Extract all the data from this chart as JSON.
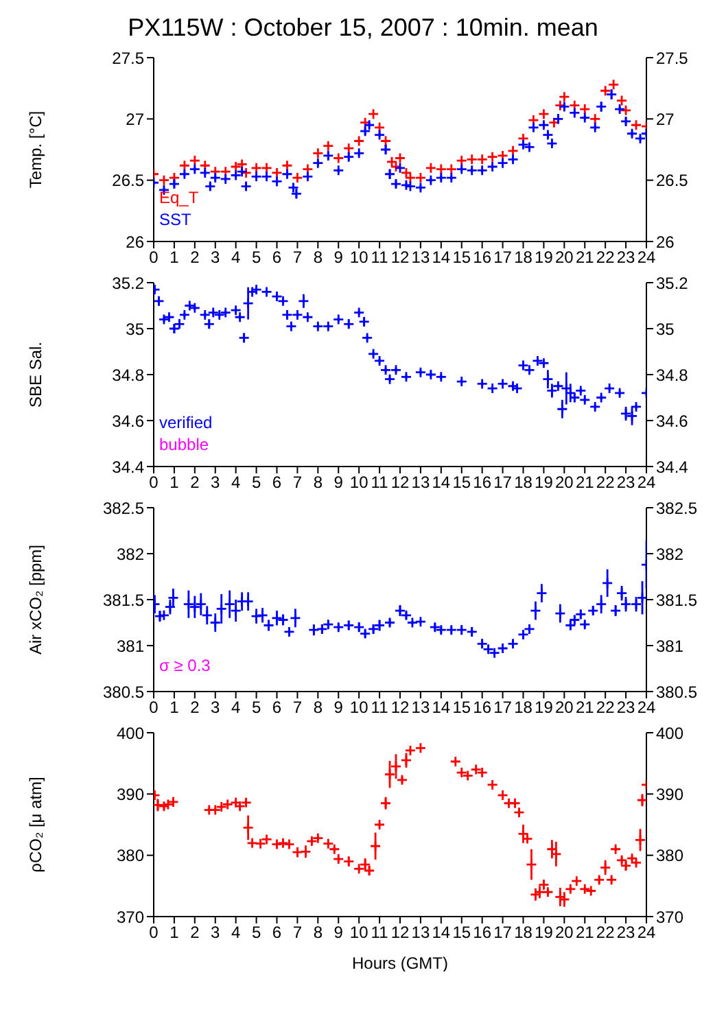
{
  "chart_data": [
    {
      "type": "scatter",
      "title": "PX115W : October 15, 2007 : 10min. mean",
      "ylabel": "Temp. [°C]",
      "marker": "cross",
      "legend": "bottom left",
      "xlim": [
        0,
        24
      ],
      "xticks": [
        0,
        1,
        2,
        3,
        4,
        5,
        6,
        7,
        8,
        9,
        10,
        11,
        12,
        13,
        14,
        15,
        16,
        17,
        18,
        19,
        20,
        21,
        22,
        23,
        24
      ],
      "ylim": [
        26,
        27.5
      ],
      "yticks": [
        26,
        26.5,
        27,
        27.5
      ],
      "y2lim": [
        26,
        27.5
      ],
      "y2ticks": [
        26,
        26.5,
        27,
        27.5
      ],
      "series": [
        {
          "name": "Eq_T",
          "color": "#ff0000",
          "x": [
            0,
            0.5,
            1,
            1.5,
            2,
            2.5,
            3,
            3.5,
            4,
            4.3,
            4.5,
            5,
            5.5,
            6,
            6.5,
            7,
            7.5,
            8,
            8.5,
            9,
            9.5,
            10,
            10.3,
            10.7,
            11,
            11.3,
            11.6,
            11.8,
            12,
            12.3,
            12.5,
            13,
            13.5,
            14,
            14.5,
            15,
            15.5,
            16,
            16.5,
            17,
            17.5,
            18,
            18.5,
            19,
            19.5,
            19.8,
            20,
            20.5,
            21,
            21.5,
            22,
            22.4,
            22.8,
            23,
            23.5,
            24
          ],
          "values": [
            26.55,
            26.5,
            26.52,
            26.62,
            26.66,
            26.62,
            26.57,
            26.57,
            26.61,
            26.63,
            26.56,
            26.6,
            26.6,
            26.56,
            26.62,
            26.52,
            26.59,
            26.72,
            26.78,
            26.68,
            26.76,
            26.82,
            26.97,
            27.04,
            26.93,
            26.82,
            26.65,
            26.61,
            26.68,
            26.56,
            26.52,
            26.52,
            26.6,
            26.59,
            26.59,
            26.66,
            26.67,
            26.67,
            26.69,
            26.7,
            26.74,
            26.84,
            26.99,
            27.04,
            26.97,
            27.11,
            27.18,
            27.11,
            27.08,
            27.0,
            27.23,
            27.28,
            27.15,
            27.07,
            26.95,
            26.94
          ]
        },
        {
          "name": "SST",
          "color": "#0000ff",
          "x": [
            0,
            0.5,
            1,
            1.5,
            2,
            2.5,
            2.75,
            3,
            3.5,
            4,
            4.3,
            4.5,
            5,
            5.5,
            6,
            6.5,
            6.8,
            6.95,
            7.5,
            8,
            8.5,
            9,
            9.5,
            10,
            10.3,
            10.5,
            11,
            11.3,
            11.5,
            11.8,
            12,
            12.3,
            12.5,
            13,
            13.5,
            14,
            14.5,
            15,
            15.5,
            16,
            16.5,
            17,
            17.5,
            18,
            18.3,
            18.5,
            19,
            19.2,
            19.4,
            19.7,
            20,
            20.5,
            21,
            21.5,
            21.8,
            22.3,
            22.7,
            23,
            23.3,
            23.7,
            24
          ],
          "values": [
            26.48,
            26.42,
            26.47,
            26.55,
            26.59,
            26.56,
            26.45,
            26.52,
            26.51,
            26.54,
            26.57,
            26.45,
            26.53,
            26.53,
            26.49,
            26.55,
            26.44,
            26.39,
            26.53,
            26.64,
            26.7,
            26.58,
            26.69,
            26.72,
            26.9,
            26.95,
            26.87,
            26.75,
            26.55,
            26.47,
            26.6,
            26.46,
            26.45,
            26.44,
            26.5,
            26.52,
            26.52,
            26.59,
            26.58,
            26.58,
            26.61,
            26.64,
            26.67,
            26.79,
            26.77,
            26.93,
            26.95,
            26.87,
            26.8,
            27.0,
            27.1,
            27.05,
            27.01,
            26.93,
            27.1,
            27.2,
            27.08,
            26.98,
            26.88,
            26.84,
            26.88
          ],
          "errors": [
            0.02,
            0.02,
            0.03,
            0.02,
            0.02,
            0.02,
            0.03,
            0.02,
            0.02,
            0.02,
            0.02,
            0.03,
            0.02,
            0.02,
            0.02,
            0.02,
            0.03,
            0.04,
            0.03,
            0.02,
            0.03,
            0.02,
            0.03,
            0.02,
            0.03,
            0.02,
            0.02,
            0.04,
            0.04,
            0.03,
            null,
            0.02,
            null,
            0.02,
            0.02,
            0.02,
            0.02,
            0.02,
            0.02,
            0.02,
            0.02,
            0.02,
            0.02,
            0.02,
            0.02,
            0.03,
            0.02,
            0.03,
            0.02,
            0.04,
            0.03,
            0.02,
            0.02,
            0.02,
            0.04,
            0.04,
            0.02,
            0.03,
            0.02,
            0.02,
            0.02
          ]
        }
      ]
    },
    {
      "type": "scatter",
      "ylabel": "SBE Sal.",
      "marker": "cross",
      "legend": "bottom left",
      "xlim": [
        0,
        24
      ],
      "xticks": [
        0,
        1,
        2,
        3,
        4,
        5,
        6,
        7,
        8,
        9,
        10,
        11,
        12,
        13,
        14,
        15,
        16,
        17,
        18,
        19,
        20,
        21,
        22,
        23,
        24
      ],
      "ylim": [
        34.4,
        35.2
      ],
      "yticks": [
        34.4,
        34.6,
        34.8,
        35,
        35.2
      ],
      "y2lim": [
        34.4,
        35.2
      ],
      "y2ticks": [
        34.4,
        34.6,
        34.8,
        35,
        35.2
      ],
      "series": [
        {
          "name": "verified",
          "color": "#0000ff",
          "x": [
            0.05,
            0.25,
            0.5,
            0.75,
            1,
            1.25,
            1.5,
            1.75,
            2,
            2.5,
            2.7,
            2.9,
            3.2,
            3.5,
            4,
            4.2,
            4.4,
            4.6,
            4.8,
            5,
            5.5,
            6,
            6.3,
            6.5,
            6.7,
            7,
            7.3,
            7.5,
            8,
            8.5,
            9,
            9.5,
            10,
            10.25,
            10.4,
            10.7,
            11,
            11.3,
            11.5,
            11.8,
            12.3,
            13,
            13.5,
            14,
            15,
            16,
            16.5,
            17,
            17.5,
            17.7,
            18,
            18.3,
            18.7,
            19,
            19.2,
            19.4,
            19.7,
            19.9,
            20.1,
            20.3,
            20.5,
            20.8,
            21,
            21.5,
            21.8,
            22.2,
            22.7,
            23,
            23.3,
            23.5,
            24
          ],
          "values": [
            35.17,
            35.12,
            35.04,
            35.05,
            35.0,
            35.02,
            35.06,
            35.1,
            35.09,
            35.06,
            35.02,
            35.07,
            35.06,
            35.07,
            35.08,
            35.05,
            34.96,
            35.11,
            35.16,
            35.17,
            35.16,
            35.14,
            35.12,
            35.06,
            35.01,
            35.06,
            35.12,
            35.05,
            35.01,
            35.01,
            35.04,
            35.02,
            35.07,
            35.03,
            34.96,
            34.89,
            34.86,
            34.82,
            34.78,
            34.82,
            34.79,
            34.81,
            34.8,
            34.79,
            34.77,
            34.76,
            34.74,
            34.76,
            34.75,
            34.74,
            34.84,
            34.82,
            34.86,
            34.85,
            34.78,
            34.73,
            34.75,
            34.65,
            34.74,
            34.72,
            34.7,
            34.73,
            34.69,
            34.66,
            34.7,
            34.74,
            34.72,
            34.63,
            34.62,
            34.66,
            34.72
          ],
          "errors": [
            0.01,
            0.02,
            0.01,
            0.01,
            0.02,
            0.02,
            0.01,
            0.01,
            0.01,
            0.01,
            0.02,
            0.01,
            0.01,
            0.01,
            0.01,
            0.01,
            0.02,
            0.07,
            0.01,
            0.01,
            0.01,
            0.01,
            0.01,
            0.02,
            0.01,
            0.01,
            0.03,
            0.01,
            0.01,
            0.01,
            0.01,
            0.02,
            0.01,
            0.02,
            0.01,
            0.01,
            0.01,
            0.01,
            0.01,
            0.01,
            0.01,
            0.01,
            0.01,
            0.01,
            0.01,
            0.01,
            0.01,
            0.01,
            0.01,
            0.01,
            0.02,
            0.01,
            0.01,
            0.01,
            0.04,
            0.03,
            0.01,
            0.04,
            0.07,
            0.04,
            0.02,
            0.01,
            0.01,
            0.01,
            0.01,
            0.01,
            0.01,
            0.03,
            0.04,
            0.01,
            0.01
          ]
        },
        {
          "name": "bubble",
          "color": "#ff00ff"
        }
      ]
    },
    {
      "type": "scatter",
      "ylabel": "Air xCO₂ [ppm]",
      "marker": "cross",
      "annotations": [
        "σ ≥ 0.3"
      ],
      "xlim": [
        0,
        24
      ],
      "xticks": [
        0,
        1,
        2,
        3,
        4,
        5,
        6,
        7,
        8,
        9,
        10,
        11,
        12,
        13,
        14,
        15,
        16,
        17,
        18,
        19,
        20,
        21,
        22,
        23,
        24
      ],
      "ylim": [
        380.5,
        382.5
      ],
      "yticks": [
        380.5,
        381,
        381.5,
        382,
        382.5
      ],
      "y2lim": [
        380.5,
        382.5
      ],
      "y2ticks": [
        380.5,
        381,
        381.5,
        382,
        382.5
      ],
      "series": [
        {
          "color": "#0000ff",
          "x": [
            0.05,
            0.3,
            0.5,
            0.8,
            0.95,
            1.7,
            2,
            2.3,
            2.6,
            3,
            3.3,
            3.7,
            4,
            4.3,
            4.6,
            5,
            5.3,
            5.6,
            6,
            6.3,
            6.6,
            6.9,
            7.8,
            8.2,
            8.5,
            9,
            9.5,
            10,
            10.3,
            10.7,
            11,
            11.5,
            12,
            12.3,
            12.6,
            13,
            13.7,
            14,
            14.5,
            15,
            15.5,
            16,
            16.3,
            16.6,
            17,
            17.5,
            18,
            18.3,
            18.6,
            18.9,
            19.8,
            20.3,
            20.5,
            20.8,
            21,
            21.4,
            21.8,
            22.1,
            22.5,
            22.8,
            23,
            23.5,
            23.8,
            24
          ],
          "values": [
            381.45,
            381.32,
            381.33,
            381.42,
            381.52,
            381.45,
            381.42,
            381.45,
            381.33,
            381.25,
            381.4,
            381.45,
            381.38,
            381.48,
            381.48,
            381.32,
            381.33,
            381.22,
            381.3,
            381.28,
            381.15,
            381.3,
            381.17,
            381.18,
            381.23,
            381.2,
            381.22,
            381.2,
            381.13,
            381.18,
            381.22,
            381.25,
            381.38,
            381.33,
            381.25,
            381.26,
            381.2,
            381.17,
            381.17,
            381.17,
            381.15,
            381.02,
            380.96,
            380.92,
            380.97,
            381.02,
            381.12,
            381.18,
            381.38,
            381.57,
            381.35,
            381.22,
            381.28,
            381.34,
            381.23,
            381.38,
            381.45,
            381.68,
            381.38,
            381.57,
            381.45,
            381.45,
            381.52,
            381.88
          ],
          "errors": [
            0.1,
            0.06,
            null,
            0.08,
            0.1,
            0.15,
            0.12,
            0.12,
            0.1,
            0.1,
            0.16,
            0.15,
            0.12,
            0.1,
            0.1,
            0.08,
            0.08,
            0.06,
            0.08,
            0.06,
            0.05,
            0.1,
            0.06,
            0.05,
            0.04,
            0.04,
            0.05,
            0.05,
            0.04,
            0.05,
            0.06,
            0.04,
            0.06,
            0.04,
            0.02,
            0.02,
            0.04,
            0.04,
            0.04,
            0.05,
            0.05,
            0.05,
            0.04,
            0.03,
            0.04,
            0.04,
            0.05,
            0.05,
            0.1,
            0.1,
            0.1,
            0.05,
            0.05,
            0.05,
            0.03,
            0.05,
            0.1,
            0.15,
            0.06,
            0.08,
            0.08,
            0.08,
            0.18,
            0.26
          ]
        }
      ]
    },
    {
      "type": "scatter",
      "ylabel": "ρCO₂ [μ atm]",
      "xlabel": "Hours (GMT)",
      "marker": "cross",
      "xlim": [
        0,
        24
      ],
      "xticks": [
        0,
        1,
        2,
        3,
        4,
        5,
        6,
        7,
        8,
        9,
        10,
        11,
        12,
        13,
        14,
        15,
        16,
        17,
        18,
        19,
        20,
        21,
        22,
        23,
        24
      ],
      "ylim": [
        370,
        400
      ],
      "yticks": [
        370,
        380,
        390,
        400
      ],
      "y2lim": [
        370,
        400
      ],
      "y2ticks": [
        370,
        380,
        390,
        400
      ],
      "series": [
        {
          "color": "#ff0000",
          "x": [
            0.05,
            0.2,
            0.5,
            0.7,
            0.95,
            2.7,
            3,
            3.3,
            3.6,
            4,
            4.2,
            4.5,
            4.6,
            4.8,
            5.2,
            5.5,
            6,
            6.3,
            6.6,
            7,
            7.4,
            7.7,
            8,
            8.5,
            8.8,
            9,
            9.5,
            10,
            10.3,
            10.5,
            10.8,
            11,
            11.3,
            11.5,
            11.8,
            12.1,
            12.3,
            12.5,
            13,
            14.7,
            15,
            15.3,
            15.7,
            16,
            16.5,
            17,
            17.3,
            17.6,
            17.8,
            18,
            18.2,
            18.4,
            18.6,
            18.8,
            19,
            19.2,
            19.4,
            19.6,
            19.8,
            20,
            20.3,
            20.6,
            21,
            21.3,
            21.7,
            22,
            22.3,
            22.5,
            22.8,
            23,
            23.3,
            23.5,
            23.7,
            23.8,
            24
          ],
          "values": [
            389.8,
            388.2,
            388.0,
            388.3,
            388.7,
            387.4,
            387.4,
            387.9,
            388.3,
            388.6,
            388.0,
            388.6,
            384.5,
            382.0,
            381.9,
            382.6,
            381.8,
            382.0,
            381.8,
            380.5,
            380.6,
            382.3,
            382.8,
            381.9,
            381.0,
            379.4,
            379.0,
            377.8,
            378.5,
            377.5,
            381.5,
            385.0,
            388.5,
            393.2,
            394.5,
            392.3,
            395.5,
            397.1,
            397.5,
            395.3,
            393.5,
            393.0,
            394.0,
            393.5,
            391.5,
            389.8,
            388.5,
            388.5,
            387.0,
            383.5,
            382.7,
            378.5,
            373.6,
            374.0,
            375.2,
            374.0,
            381.0,
            380.2,
            373.2,
            372.8,
            374.5,
            375.8,
            374.5,
            374.2,
            376.0,
            378.0,
            376.0,
            381.0,
            379.2,
            378.3,
            379.5,
            378.8,
            382.5,
            389.0,
            391.5
          ],
          "errors": [
            0.3,
            1.0,
            0.5,
            null,
            0.8,
            0.3,
            0.3,
            0.3,
            0.3,
            0.3,
            0.5,
            0.5,
            2.0,
            0.3,
            0.3,
            0.5,
            0.3,
            0.3,
            0.3,
            0.8,
            1.0,
            0.5,
            0.3,
            0.3,
            0.5,
            0.5,
            0.8,
            0.3,
            1.0,
            0.8,
            2.2,
            0.3,
            1.0,
            2.2,
            2.0,
            0.5,
            1.2,
            0.3,
            null,
            0.3,
            0.3,
            0.3,
            0.3,
            0.3,
            0.3,
            0.3,
            0.3,
            0.3,
            0.5,
            1.5,
            0.5,
            2.5,
            1.0,
            1.0,
            0.8,
            0.5,
            1.5,
            2.0,
            1.5,
            1.2,
            0.5,
            0.3,
            0.3,
            0.3,
            0.5,
            1.2,
            0.5,
            0.3,
            0.5,
            0.8,
            0.3,
            0.3,
            1.8,
            1.0,
            0.3
          ]
        }
      ]
    }
  ]
}
